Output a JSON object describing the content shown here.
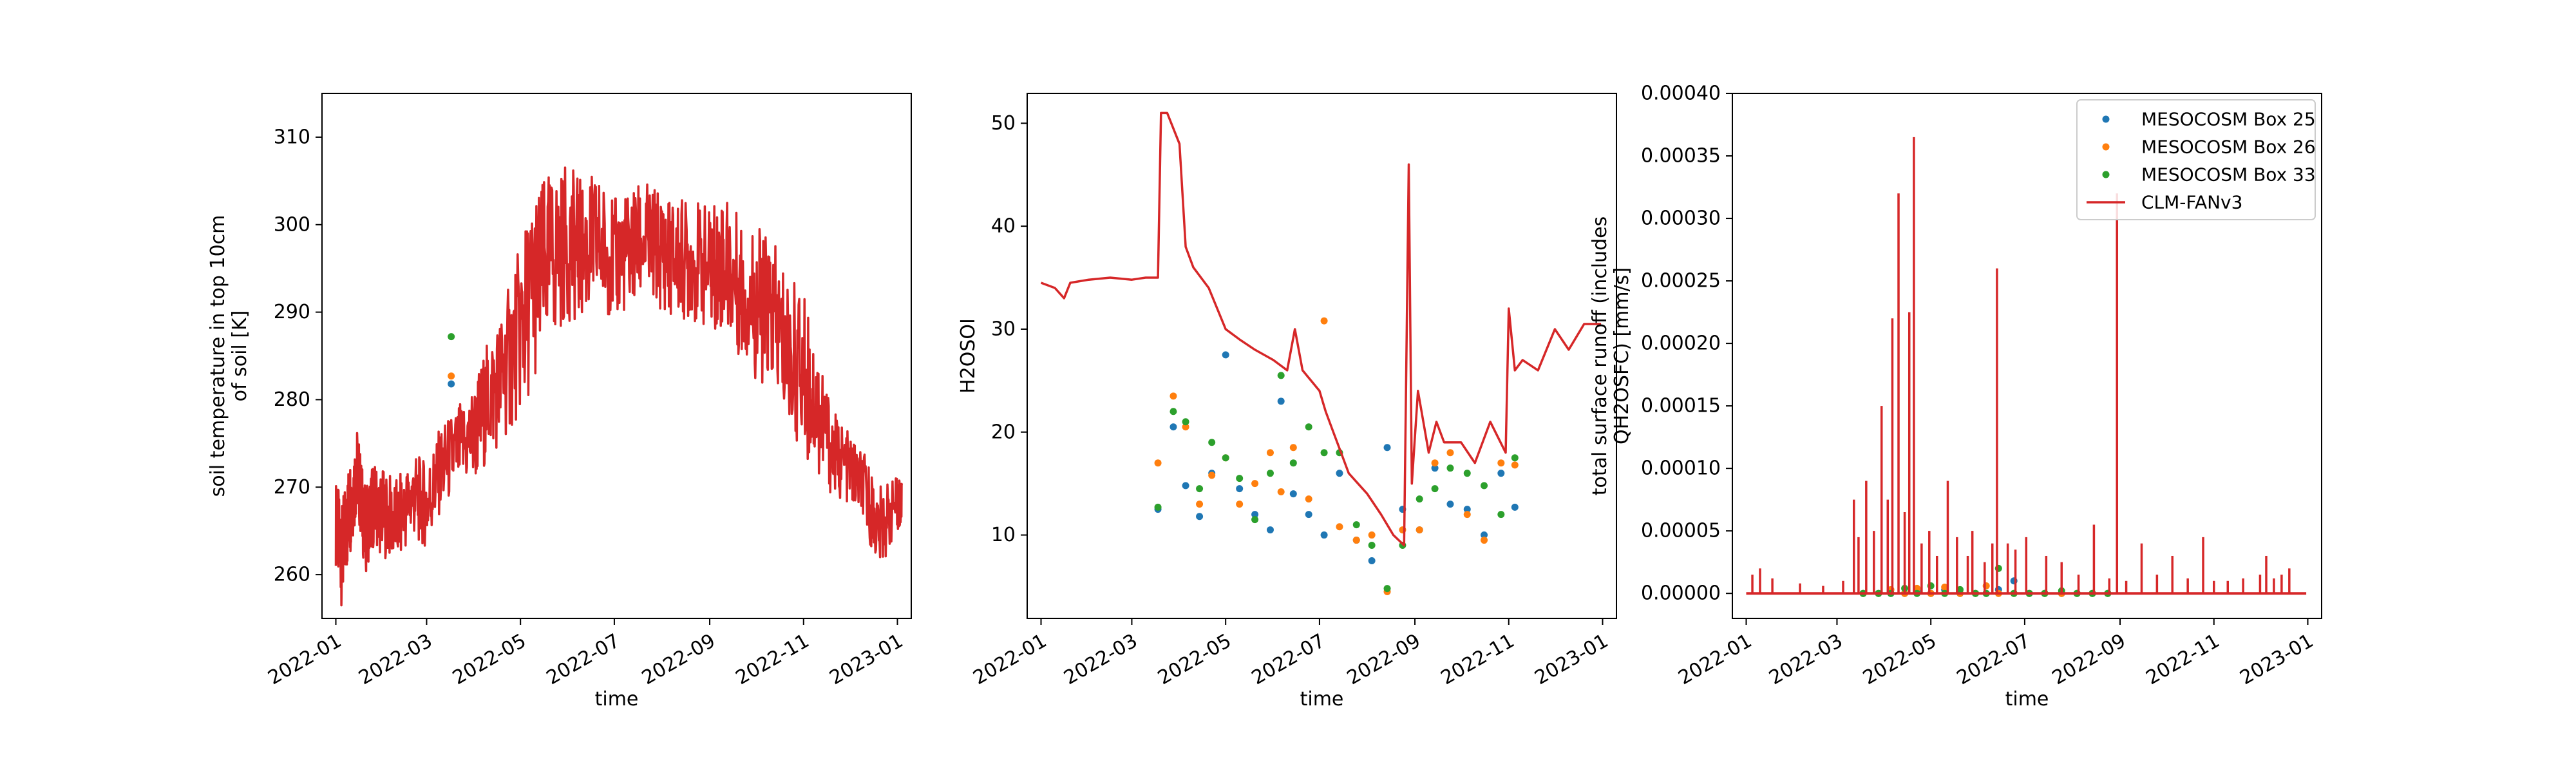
{
  "colors": {
    "box25": "#1f77b4",
    "box26": "#ff7f0e",
    "box33": "#2ca02c",
    "model": "#d62728"
  },
  "chart_data": [
    {
      "type": "line",
      "xlabel": "time",
      "ylabel": "soil temperature in top 10cm\nof soil [K]",
      "xlim": [
        "2021-12-23",
        "2023-01-10"
      ],
      "ylim": [
        255,
        315
      ],
      "xticks": [
        "2022-01",
        "2022-03",
        "2022-05",
        "2022-07",
        "2022-09",
        "2022-11",
        "2023-01"
      ],
      "yticks": [
        "260",
        "270",
        "280",
        "290",
        "300",
        "310"
      ],
      "series": [
        {
          "name": "MESOCOSM Box 25",
          "kind": "scatter",
          "color": "#1f77b4",
          "x": [
            "2022-03-17"
          ],
          "y": [
            281.8
          ]
        },
        {
          "name": "MESOCOSM Box 26",
          "kind": "scatter",
          "color": "#ff7f0e",
          "x": [
            "2022-03-17"
          ],
          "y": [
            282.7
          ]
        },
        {
          "name": "MESOCOSM Box 33",
          "kind": "scatter",
          "color": "#2ca02c",
          "x": [
            "2022-03-17"
          ],
          "y": [
            287.2
          ]
        },
        {
          "name": "CLM-FANv3",
          "kind": "line",
          "color": "#d62728",
          "x": [
            "2022-01-01",
            "2022-01-05",
            "2022-01-10",
            "2022-01-15",
            "2022-01-20",
            "2022-01-25",
            "2022-02-01",
            "2022-02-10",
            "2022-02-20",
            "2022-03-01",
            "2022-03-10",
            "2022-03-20",
            "2022-04-01",
            "2022-04-10",
            "2022-04-20",
            "2022-05-01",
            "2022-05-10",
            "2022-05-20",
            "2022-06-01",
            "2022-06-10",
            "2022-06-20",
            "2022-07-01",
            "2022-07-10",
            "2022-07-20",
            "2022-08-01",
            "2022-08-10",
            "2022-08-20",
            "2022-09-01",
            "2022-09-10",
            "2022-09-20",
            "2022-10-01",
            "2022-10-10",
            "2022-10-20",
            "2022-11-01",
            "2022-11-10",
            "2022-11-20",
            "2022-12-01",
            "2022-12-10",
            "2022-12-20",
            "2022-12-31"
          ],
          "y": [
            266,
            262,
            268,
            272,
            265,
            268,
            267,
            266,
            269,
            268,
            272,
            274,
            276,
            280,
            283,
            288,
            293,
            296,
            298,
            297,
            298,
            296,
            297,
            298,
            297,
            296,
            296,
            295,
            296,
            293,
            291,
            290,
            286,
            283,
            279,
            274,
            272,
            270,
            265,
            268
          ],
          "band": [
            5,
            6,
            6,
            5,
            5,
            5,
            5,
            5,
            5,
            5,
            5,
            5,
            6,
            7,
            8,
            10,
            11,
            10,
            9,
            8,
            8,
            7,
            7,
            7,
            7,
            7,
            7,
            7,
            8,
            8,
            9,
            9,
            9,
            9,
            8,
            5,
            4,
            4,
            5,
            3
          ]
        }
      ]
    },
    {
      "type": "line",
      "xlabel": "time",
      "ylabel": "H2OSOI",
      "xlim": [
        "2021-12-23",
        "2023-01-10"
      ],
      "ylim": [
        1.9,
        52.9
      ],
      "xticks": [
        "2022-01",
        "2022-03",
        "2022-05",
        "2022-07",
        "2022-09",
        "2022-11",
        "2023-01"
      ],
      "yticks": [
        "10",
        "20",
        "30",
        "40",
        "50"
      ],
      "series": [
        {
          "name": "MESOCOSM Box 25",
          "kind": "scatter",
          "color": "#1f77b4",
          "x": [
            "2022-03-18",
            "2022-03-28",
            "2022-04-05",
            "2022-04-14",
            "2022-04-22",
            "2022-05-01",
            "2022-05-10",
            "2022-05-20",
            "2022-05-30",
            "2022-06-06",
            "2022-06-14",
            "2022-06-24",
            "2022-07-04",
            "2022-07-14",
            "2022-07-25",
            "2022-08-04",
            "2022-08-14",
            "2022-08-24",
            "2022-09-04",
            "2022-09-14",
            "2022-09-24",
            "2022-10-05",
            "2022-10-16",
            "2022-10-27",
            "2022-11-05"
          ],
          "y": [
            12.5,
            20.5,
            14.8,
            11.8,
            16.0,
            27.5,
            14.5,
            12.0,
            10.5,
            23.0,
            14.0,
            12.0,
            10.0,
            16.0,
            9.5,
            7.5,
            18.5,
            12.5,
            10.5,
            16.5,
            13.0,
            12.5,
            10.0,
            16.0,
            12.7
          ]
        },
        {
          "name": "MESOCOSM Box 26",
          "kind": "scatter",
          "color": "#ff7f0e",
          "x": [
            "2022-03-18",
            "2022-03-28",
            "2022-04-05",
            "2022-04-14",
            "2022-04-22",
            "2022-05-01",
            "2022-05-10",
            "2022-05-20",
            "2022-05-30",
            "2022-06-06",
            "2022-06-14",
            "2022-06-24",
            "2022-07-04",
            "2022-07-14",
            "2022-07-25",
            "2022-08-04",
            "2022-08-14",
            "2022-08-24",
            "2022-09-04",
            "2022-09-14",
            "2022-09-24",
            "2022-10-05",
            "2022-10-16",
            "2022-10-27",
            "2022-11-05"
          ],
          "y": [
            17.0,
            23.5,
            20.5,
            13.0,
            15.8,
            17.5,
            13.0,
            15.0,
            18.0,
            14.2,
            18.5,
            13.5,
            30.8,
            10.8,
            9.5,
            10.0,
            4.5,
            10.5,
            10.5,
            17.0,
            18.0,
            12.0,
            9.5,
            17.0,
            16.8
          ]
        },
        {
          "name": "MESOCOSM Box 33",
          "kind": "scatter",
          "color": "#2ca02c",
          "x": [
            "2022-03-18",
            "2022-03-28",
            "2022-04-05",
            "2022-04-14",
            "2022-04-22",
            "2022-05-01",
            "2022-05-10",
            "2022-05-20",
            "2022-05-30",
            "2022-06-06",
            "2022-06-14",
            "2022-06-24",
            "2022-07-04",
            "2022-07-14",
            "2022-07-25",
            "2022-08-04",
            "2022-08-14",
            "2022-08-24",
            "2022-09-04",
            "2022-09-14",
            "2022-09-24",
            "2022-10-05",
            "2022-10-16",
            "2022-10-27",
            "2022-11-05"
          ],
          "y": [
            12.7,
            22.0,
            21.0,
            14.5,
            19.0,
            17.5,
            15.5,
            11.5,
            16.0,
            25.5,
            17.0,
            20.5,
            18.0,
            18.0,
            11.0,
            9.0,
            4.8,
            9.0,
            13.5,
            14.5,
            16.5,
            16.0,
            14.8,
            12.0,
            17.5
          ]
        },
        {
          "name": "CLM-FANv3",
          "kind": "line",
          "color": "#d62728",
          "x": [
            "2022-01-01",
            "2022-01-10",
            "2022-01-16",
            "2022-01-20",
            "2022-02-01",
            "2022-02-15",
            "2022-03-01",
            "2022-03-10",
            "2022-03-18",
            "2022-03-20",
            "2022-03-24",
            "2022-04-01",
            "2022-04-05",
            "2022-04-10",
            "2022-04-20",
            "2022-05-01",
            "2022-05-10",
            "2022-05-20",
            "2022-06-01",
            "2022-06-10",
            "2022-06-15",
            "2022-06-20",
            "2022-07-01",
            "2022-07-05",
            "2022-07-10",
            "2022-07-15",
            "2022-07-20",
            "2022-08-01",
            "2022-08-10",
            "2022-08-18",
            "2022-08-25",
            "2022-08-28",
            "2022-08-30",
            "2022-09-03",
            "2022-09-10",
            "2022-09-15",
            "2022-09-20",
            "2022-10-01",
            "2022-10-10",
            "2022-10-20",
            "2022-10-30",
            "2022-11-01",
            "2022-11-05",
            "2022-11-10",
            "2022-11-20",
            "2022-12-01",
            "2022-12-10",
            "2022-12-20",
            "2022-12-31"
          ],
          "y": [
            34.5,
            34,
            33,
            34.5,
            34.8,
            35,
            34.8,
            35,
            35,
            51,
            51,
            48,
            38,
            36,
            34,
            30,
            29,
            28,
            27,
            26,
            30,
            26,
            24,
            22,
            20,
            18,
            16,
            14,
            12,
            10,
            9,
            46,
            15,
            24,
            18,
            21,
            19,
            19,
            17,
            21,
            18,
            32,
            26,
            27,
            26,
            30,
            28,
            30.5,
            30.5
          ]
        }
      ]
    },
    {
      "type": "line",
      "xlabel": "time",
      "ylabel": "total surface runoff (includes\nQH2OSFC) [mm/s]",
      "xlim": [
        "2021-12-23",
        "2023-01-10"
      ],
      "ylim": [
        -2e-05,
        0.0004
      ],
      "xticks": [
        "2022-01",
        "2022-03",
        "2022-05",
        "2022-07",
        "2022-09",
        "2022-11",
        "2023-01"
      ],
      "yticks": [
        "0.00000",
        "0.00005",
        "0.00010",
        "0.00015",
        "0.00020",
        "0.00025",
        "0.00030",
        "0.00035",
        "0.00040"
      ],
      "legend": {
        "position": "upper-right",
        "entries": [
          "MESOCOSM Box 25",
          "MESOCOSM Box 26",
          "MESOCOSM Box 33",
          "CLM-FANv3"
        ]
      },
      "series": [
        {
          "name": "MESOCOSM Box 25",
          "kind": "scatter",
          "color": "#1f77b4",
          "x": [
            "2022-03-18",
            "2022-03-28",
            "2022-04-05",
            "2022-04-14",
            "2022-04-22",
            "2022-05-01",
            "2022-05-10",
            "2022-05-20",
            "2022-05-30",
            "2022-06-06",
            "2022-06-14",
            "2022-06-24",
            "2022-07-04",
            "2022-07-14",
            "2022-07-25",
            "2022-08-04",
            "2022-08-14",
            "2022-08-24"
          ],
          "y": [
            0,
            0,
            0,
            0,
            2e-06,
            0,
            3e-06,
            0,
            0,
            0,
            3e-06,
            1e-05,
            0,
            0,
            0,
            0,
            0,
            0
          ]
        },
        {
          "name": "MESOCOSM Box 26",
          "kind": "scatter",
          "color": "#ff7f0e",
          "x": [
            "2022-03-18",
            "2022-03-28",
            "2022-04-05",
            "2022-04-14",
            "2022-04-22",
            "2022-05-01",
            "2022-05-10",
            "2022-05-20",
            "2022-05-30",
            "2022-06-06",
            "2022-06-14",
            "2022-06-24",
            "2022-07-04",
            "2022-07-14",
            "2022-07-25",
            "2022-08-04",
            "2022-08-14",
            "2022-08-24"
          ],
          "y": [
            0,
            0,
            3e-06,
            0,
            4e-06,
            0,
            5e-06,
            0,
            0,
            6e-06,
            0,
            0,
            0,
            0,
            0,
            0,
            0,
            0
          ]
        },
        {
          "name": "MESOCOSM Box 33",
          "kind": "scatter",
          "color": "#2ca02c",
          "x": [
            "2022-03-18",
            "2022-03-28",
            "2022-04-05",
            "2022-04-14",
            "2022-04-22",
            "2022-05-01",
            "2022-05-10",
            "2022-05-20",
            "2022-05-30",
            "2022-06-06",
            "2022-06-14",
            "2022-06-24",
            "2022-07-04",
            "2022-07-14",
            "2022-07-25",
            "2022-08-04",
            "2022-08-14",
            "2022-08-24"
          ],
          "y": [
            0,
            0,
            0,
            4e-06,
            0,
            6e-06,
            0,
            3e-06,
            0,
            0,
            2e-05,
            0,
            0,
            0,
            2e-06,
            0,
            0,
            0
          ]
        },
        {
          "name": "CLM-FANv3",
          "kind": "spikes",
          "color": "#d62728",
          "x": [
            "2022-01-05",
            "2022-01-10",
            "2022-01-18",
            "2022-02-05",
            "2022-02-20",
            "2022-03-05",
            "2022-03-12",
            "2022-03-15",
            "2022-03-20",
            "2022-03-25",
            "2022-03-30",
            "2022-04-03",
            "2022-04-06",
            "2022-04-10",
            "2022-04-14",
            "2022-04-17",
            "2022-04-20",
            "2022-04-25",
            "2022-04-30",
            "2022-05-05",
            "2022-05-12",
            "2022-05-18",
            "2022-05-25",
            "2022-05-28",
            "2022-06-05",
            "2022-06-10",
            "2022-06-13",
            "2022-06-20",
            "2022-06-25",
            "2022-07-02",
            "2022-07-15",
            "2022-07-25",
            "2022-08-05",
            "2022-08-15",
            "2022-08-25",
            "2022-08-30",
            "2022-09-05",
            "2022-09-15",
            "2022-09-25",
            "2022-10-05",
            "2022-10-15",
            "2022-10-25",
            "2022-11-01",
            "2022-11-10",
            "2022-11-20",
            "2022-12-01",
            "2022-12-05",
            "2022-12-10",
            "2022-12-15",
            "2022-12-20"
          ],
          "y": [
            1.5e-05,
            2e-05,
            1.2e-05,
            8e-06,
            6e-06,
            1e-05,
            7.5e-05,
            4.5e-05,
            9e-05,
            5e-05,
            0.00015,
            7.5e-05,
            0.00022,
            0.00032,
            6.5e-05,
            0.000225,
            0.000365,
            4e-05,
            5e-05,
            3e-05,
            9e-05,
            4.5e-05,
            3e-05,
            5e-05,
            2.5e-05,
            4e-05,
            0.00026,
            4e-05,
            3.5e-05,
            4.5e-05,
            3e-05,
            2.5e-05,
            1.5e-05,
            5.5e-05,
            1.2e-05,
            0.00032,
            1e-05,
            4e-05,
            1.5e-05,
            3e-05,
            1.2e-05,
            4.5e-05,
            1e-05,
            1e-05,
            1.2e-05,
            1.5e-05,
            3e-05,
            1.2e-05,
            1.5e-05,
            2e-05
          ]
        }
      ]
    }
  ]
}
